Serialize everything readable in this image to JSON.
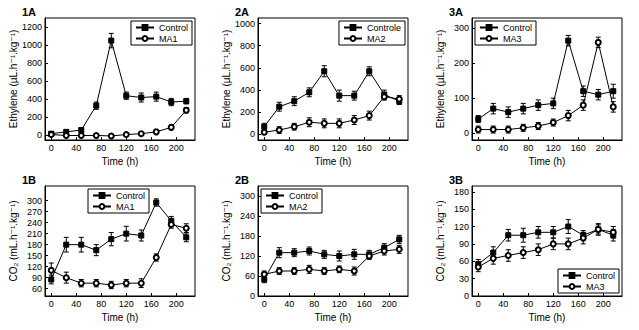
{
  "chart_data": [
    {
      "type": "line",
      "title": "1A",
      "x_label": "Time (h)",
      "y_label": "Ethylene (µL.h⁻¹.kg⁻¹)",
      "x": [
        0,
        24,
        48,
        72,
        96,
        120,
        144,
        168,
        192,
        216
      ],
      "xlim": [
        -10,
        230
      ],
      "xticks": [
        0,
        40,
        80,
        120,
        160,
        200
      ],
      "ylim": [
        -50,
        1300
      ],
      "yticks": [
        0,
        200,
        400,
        600,
        800,
        1000,
        1200
      ],
      "grid": false,
      "legend": "upper right",
      "series": [
        {
          "name": "Control",
          "color": "#000000",
          "marker": "square",
          "line_style": "solid",
          "values": [
            20,
            40,
            60,
            330,
            1050,
            440,
            420,
            430,
            370,
            380
          ],
          "errors": [
            20,
            20,
            20,
            40,
            80,
            40,
            50,
            50,
            40,
            30
          ]
        },
        {
          "name": "MA1",
          "color": "#000000",
          "marker": "open_circle",
          "line_style": "solid",
          "values": [
            10,
            0,
            0,
            0,
            -5,
            10,
            20,
            40,
            90,
            280
          ],
          "errors": [
            15,
            10,
            10,
            10,
            10,
            10,
            15,
            20,
            25,
            30
          ]
        }
      ]
    },
    {
      "type": "line",
      "title": "2A",
      "x_label": "Time (h)",
      "y_label": "Ethylene (µL.h⁻¹.kg⁻¹)",
      "x": [
        0,
        24,
        48,
        72,
        96,
        120,
        144,
        168,
        192,
        216
      ],
      "xlim": [
        -10,
        230
      ],
      "xticks": [
        0,
        40,
        80,
        120,
        160,
        200
      ],
      "ylim": [
        -50,
        1050
      ],
      "yticks": [
        0,
        200,
        400,
        600,
        800,
        1000
      ],
      "grid": false,
      "legend": "upper right",
      "series": [
        {
          "name": "Controle",
          "color": "#000000",
          "marker": "square",
          "line_style": "solid",
          "values": [
            70,
            250,
            300,
            380,
            570,
            350,
            350,
            570,
            360,
            300
          ],
          "errors": [
            30,
            40,
            40,
            40,
            50,
            50,
            40,
            40,
            40,
            30
          ]
        },
        {
          "name": "MA2",
          "color": "#000000",
          "marker": "open_circle",
          "line_style": "solid",
          "values": [
            20,
            40,
            70,
            110,
            100,
            100,
            130,
            170,
            340,
            320
          ],
          "errors": [
            20,
            30,
            30,
            40,
            40,
            40,
            40,
            40,
            30,
            30
          ]
        }
      ]
    },
    {
      "type": "line",
      "title": "3A",
      "x_label": "Time (h)",
      "y_label": "Ethylene (µL.h⁻¹.kg⁻¹)",
      "x": [
        0,
        24,
        48,
        72,
        96,
        120,
        144,
        168,
        192,
        216
      ],
      "xlim": [
        -10,
        230
      ],
      "xticks": [
        0,
        40,
        80,
        120,
        160,
        200
      ],
      "ylim": [
        -20,
        330
      ],
      "yticks": [
        0,
        100,
        200,
        300
      ],
      "grid": false,
      "legend": "upper left",
      "series": [
        {
          "name": "Control",
          "color": "#000000",
          "marker": "square",
          "line_style": "solid",
          "values": [
            40,
            70,
            60,
            70,
            80,
            85,
            265,
            120,
            110,
            120
          ],
          "errors": [
            10,
            15,
            15,
            15,
            15,
            15,
            15,
            15,
            15,
            20
          ]
        },
        {
          "name": "MA3",
          "color": "#000000",
          "marker": "open_circle",
          "line_style": "solid",
          "values": [
            10,
            10,
            10,
            15,
            20,
            30,
            50,
            80,
            260,
            75
          ],
          "errors": [
            10,
            10,
            10,
            10,
            10,
            10,
            15,
            15,
            15,
            15
          ]
        }
      ]
    },
    {
      "type": "line",
      "title": "1B",
      "x_label": "Time (h)",
      "y_label": "CO₂ (mL.h⁻¹.kg⁻¹)",
      "x": [
        0,
        24,
        48,
        72,
        96,
        120,
        144,
        168,
        192,
        216
      ],
      "xlim": [
        -10,
        230
      ],
      "xticks": [
        0,
        40,
        80,
        120,
        160,
        200
      ],
      "ylim": [
        40,
        340
      ],
      "yticks": [
        60,
        90,
        120,
        150,
        180,
        210,
        240,
        270,
        300
      ],
      "grid": false,
      "legend": "upper center",
      "series": [
        {
          "name": "Control",
          "color": "#000000",
          "marker": "square",
          "line_style": "solid",
          "values": [
            85,
            180,
            180,
            165,
            195,
            210,
            205,
            295,
            245,
            200
          ],
          "errors": [
            12,
            20,
            20,
            15,
            18,
            20,
            15,
            10,
            12,
            12
          ]
        },
        {
          "name": "MA1",
          "color": "#000000",
          "marker": "open_circle",
          "line_style": "solid",
          "values": [
            110,
            90,
            75,
            75,
            70,
            75,
            75,
            145,
            235,
            225
          ],
          "errors": [
            20,
            15,
            10,
            10,
            10,
            10,
            12,
            10,
            10,
            12
          ]
        }
      ]
    },
    {
      "type": "line",
      "title": "2B",
      "x_label": "Time (h)",
      "y_label": "CO₂ (mL.h⁻¹.kg⁻¹)",
      "x": [
        0,
        24,
        48,
        72,
        96,
        120,
        144,
        168,
        192,
        216
      ],
      "xlim": [
        -10,
        230
      ],
      "xticks": [
        0,
        40,
        80,
        120,
        160,
        200
      ],
      "ylim": [
        0,
        330
      ],
      "yticks": [
        0,
        60,
        120,
        180,
        240,
        300
      ],
      "grid": false,
      "legend": "upper left",
      "series": [
        {
          "name": "Control",
          "color": "#000000",
          "marker": "square",
          "line_style": "solid",
          "values": [
            50,
            130,
            130,
            135,
            125,
            120,
            125,
            125,
            145,
            170
          ],
          "errors": [
            10,
            15,
            12,
            12,
            12,
            15,
            15,
            12,
            12,
            12
          ]
        },
        {
          "name": "MA2",
          "color": "#000000",
          "marker": "open_circle",
          "line_style": "solid",
          "values": [
            65,
            75,
            75,
            80,
            75,
            80,
            75,
            120,
            135,
            140
          ],
          "errors": [
            10,
            10,
            10,
            12,
            10,
            10,
            12,
            10,
            12,
            12
          ]
        }
      ]
    },
    {
      "type": "line",
      "title": "3B",
      "x_label": "Time (h)",
      "y_label": "CO₂ (mL.h⁻¹.kg⁻¹)",
      "x": [
        0,
        24,
        48,
        72,
        96,
        120,
        144,
        168,
        192,
        216
      ],
      "xlim": [
        -10,
        230
      ],
      "xticks": [
        0,
        40,
        80,
        120,
        160,
        200
      ],
      "ylim": [
        0,
        190
      ],
      "yticks": [
        0,
        30,
        60,
        90,
        120,
        150,
        180
      ],
      "grid": false,
      "legend": "lower right",
      "series": [
        {
          "name": "Control",
          "color": "#000000",
          "marker": "square",
          "line_style": "solid",
          "values": [
            55,
            75,
            105,
            105,
            110,
            110,
            120,
            105,
            115,
            105
          ],
          "errors": [
            8,
            10,
            10,
            12,
            10,
            10,
            12,
            8,
            8,
            10
          ]
        },
        {
          "name": "MA3",
          "color": "#000000",
          "marker": "open_circle",
          "line_style": "solid",
          "values": [
            50,
            65,
            70,
            75,
            80,
            90,
            90,
            100,
            115,
            110
          ],
          "errors": [
            8,
            10,
            10,
            10,
            10,
            10,
            10,
            10,
            10,
            10
          ]
        }
      ]
    }
  ]
}
